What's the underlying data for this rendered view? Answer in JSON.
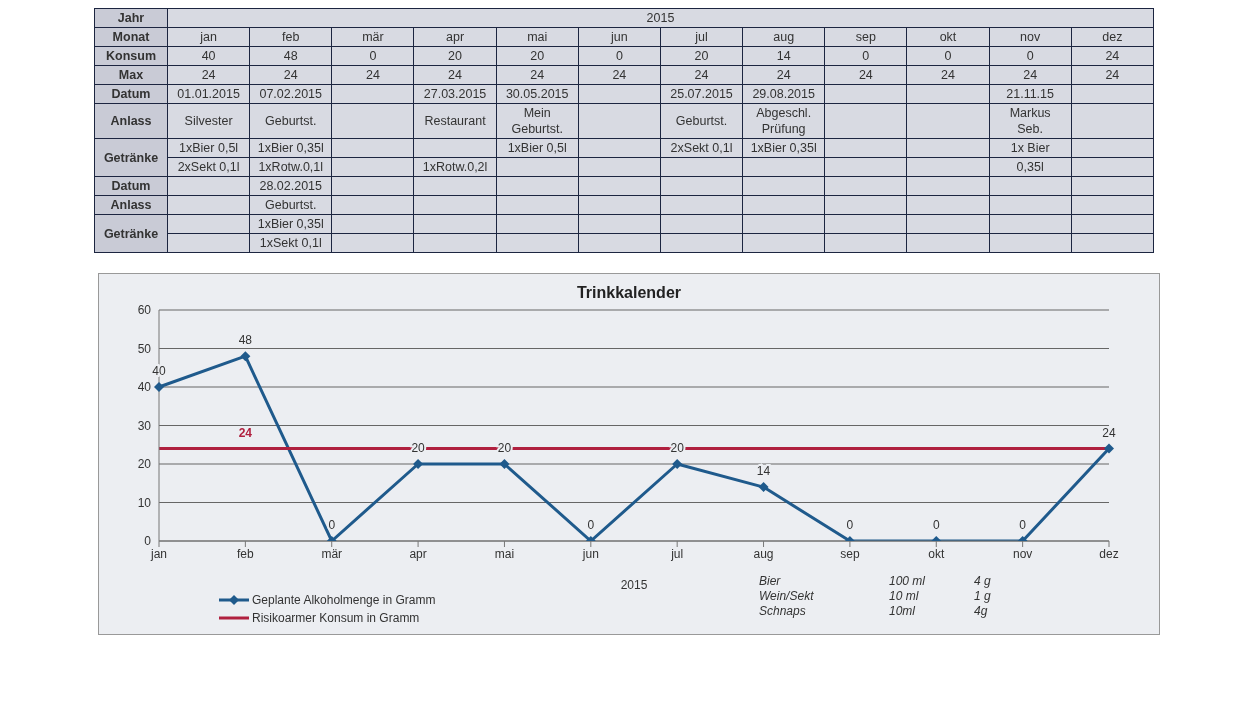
{
  "chart_data": [
    {
      "type": "other",
      "annotations": [
        "Jahr",
        "2015"
      ],
      "xlabel": "Monat",
      "categories": [
        "jan",
        "feb",
        "mär",
        "apr",
        "mai",
        "jun",
        "jul",
        "aug",
        "sep",
        "okt",
        "nov",
        "dez"
      ],
      "y_categories": [
        "Konsum",
        "Max",
        "Datum",
        "Anlass",
        "Getränke",
        null,
        "Datum",
        "Anlass",
        "Getränke",
        null
      ],
      "cell_labels": [
        [
          "40",
          "48",
          "0",
          "20",
          "20",
          "0",
          "20",
          "14",
          "0",
          "0",
          "0",
          "24"
        ],
        [
          "24",
          "24",
          "24",
          "24",
          "24",
          "24",
          "24",
          "24",
          "24",
          "24",
          "24",
          "24"
        ],
        [
          "01.01.2015",
          "07.02.2015",
          null,
          "27.03.2015",
          "30.05.2015",
          null,
          "25.07.2015",
          "29.08.2015",
          null,
          null,
          "21.11.15",
          null
        ],
        [
          "Silvester",
          "Geburtst.",
          null,
          "Restaurant",
          "Mein\nGeburtst.",
          null,
          "Geburtst.",
          "Abgeschl.\nPrüfung",
          null,
          null,
          "Markus\nSeb.",
          null
        ],
        [
          "1xBier 0,5l",
          "1xBier 0,35l",
          null,
          null,
          "1xBier 0,5l",
          null,
          "2xSekt 0,1l",
          "1xBier 0,35l",
          null,
          null,
          "1x Bier",
          null
        ],
        [
          "2xSekt 0,1l",
          "1xRotw.0,1l",
          null,
          "1xRotw.0,2l",
          null,
          null,
          null,
          null,
          null,
          null,
          "0,35l",
          null
        ],
        [
          null,
          "28.02.2015",
          null,
          null,
          null,
          null,
          null,
          null,
          null,
          null,
          null,
          null
        ],
        [
          null,
          "Geburtst.",
          null,
          null,
          null,
          null,
          null,
          null,
          null,
          null,
          null,
          null
        ],
        [
          null,
          "1xBier 0,35l",
          null,
          null,
          null,
          null,
          null,
          null,
          null,
          null,
          null,
          null
        ],
        [
          null,
          "1xSekt 0,1l",
          null,
          null,
          null,
          null,
          null,
          null,
          null,
          null,
          null,
          null
        ]
      ]
    },
    {
      "type": "line",
      "title": "Trinkkalender",
      "xlabel": "2015",
      "categories": [
        "jan",
        "feb",
        "mär",
        "apr",
        "mai",
        "jun",
        "jul",
        "aug",
        "sep",
        "okt",
        "nov",
        "dez"
      ],
      "ylim": [
        0,
        60
      ],
      "yticks": [
        0,
        10,
        20,
        30,
        40,
        50,
        60
      ],
      "grid": "y",
      "legend": "bottom left",
      "series": [
        {
          "name": "Geplante Alkoholmenge in Gramm",
          "color": "#1f5a8c",
          "marker": "diamond",
          "values": [
            40,
            48,
            0,
            20,
            20,
            0,
            20,
            14,
            0,
            0,
            0,
            24
          ],
          "value_labels": [
            "40",
            "48",
            "0",
            "20",
            "20",
            "0",
            "20",
            "14",
            "0",
            "0",
            "0",
            "24"
          ]
        },
        {
          "name": "Risikoarmer Konsum in Gramm",
          "color": "#b0203f",
          "marker": "none",
          "values": [
            24,
            24,
            24,
            24,
            24,
            24,
            24,
            24,
            24,
            24,
            24,
            24
          ],
          "value_labels": [
            null,
            "24",
            null,
            null,
            null,
            null,
            null,
            null,
            null,
            null,
            null,
            null
          ]
        }
      ],
      "annotations": [
        "Bier",
        "100 ml",
        "4 g",
        "Wein/Sekt",
        "10 ml",
        "1 g",
        "Schnaps",
        "10ml",
        "4g"
      ]
    }
  ]
}
